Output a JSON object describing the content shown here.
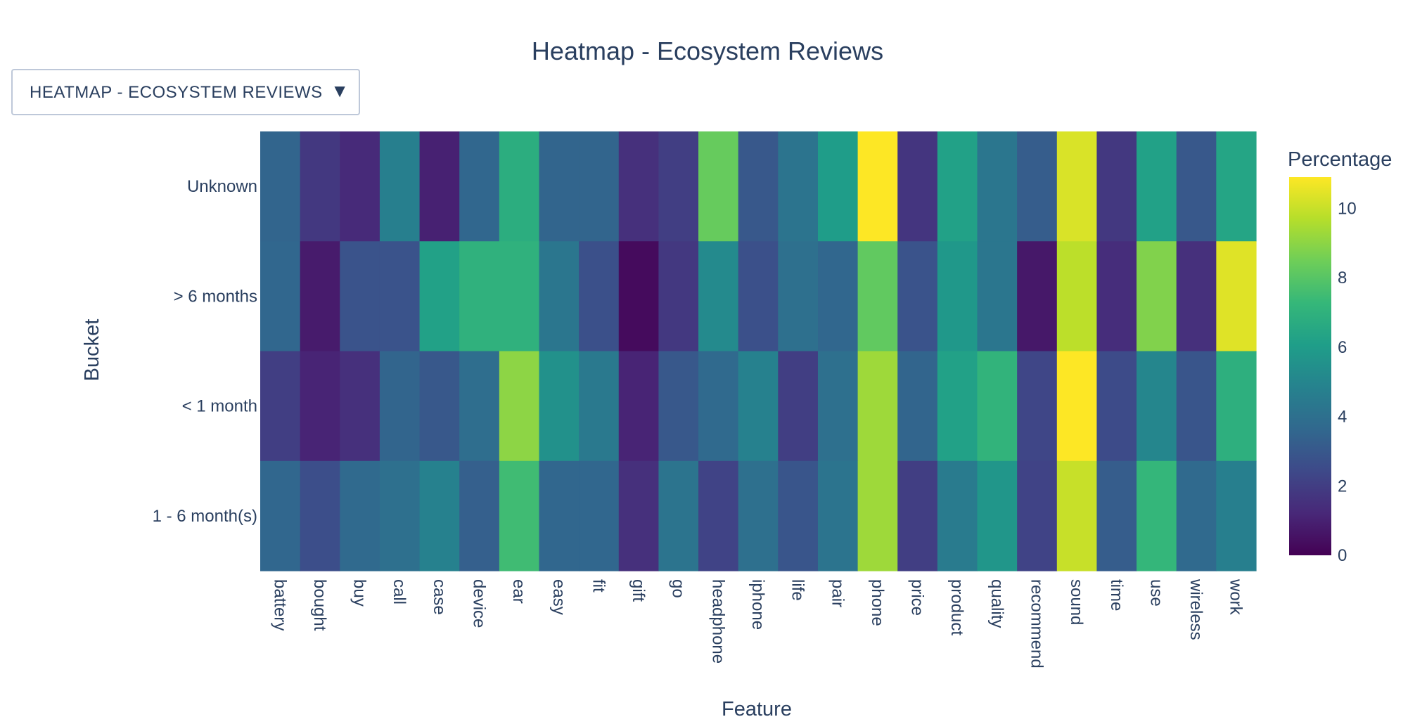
{
  "updatemenu": {
    "selected_label": "HEATMAP - ECOSYSTEM REVIEWS",
    "arrow_glyph": "▼"
  },
  "chart_data": {
    "type": "heatmap",
    "title": "Heatmap - Ecosystem Reviews",
    "xlabel": "Feature",
    "ylabel": "Bucket",
    "colorbar_title": "Percentage",
    "colorscale": "Viridis",
    "zmin": 0,
    "zmax": 10.9,
    "colorbar_ticks": [
      0,
      2,
      4,
      6,
      8,
      10
    ],
    "x": [
      "battery",
      "bought",
      "buy",
      "call",
      "case",
      "device",
      "ear",
      "easy",
      "fit",
      "gift",
      "go",
      "headphone",
      "iphone",
      "life",
      "pair",
      "phone",
      "price",
      "product",
      "quality",
      "recommend",
      "sound",
      "time",
      "use",
      "wireless",
      "work"
    ],
    "y": [
      "Unknown",
      "> 6 months",
      "< 1 month",
      "1 - 6 month(s)"
    ],
    "z": [
      [
        3.5,
        1.8,
        1.3,
        4.7,
        1.0,
        3.6,
        6.8,
        3.5,
        3.5,
        1.5,
        2.0,
        8.3,
        3.0,
        4.2,
        6.0,
        10.9,
        1.7,
        6.2,
        4.3,
        3.2,
        10.3,
        1.8,
        6.2,
        3.0,
        6.4
      ],
      [
        3.6,
        0.8,
        2.8,
        2.8,
        6.2,
        7.0,
        7.0,
        4.3,
        2.7,
        0.3,
        1.8,
        5.2,
        2.7,
        4.0,
        3.6,
        8.2,
        2.8,
        5.8,
        4.3,
        0.7,
        9.8,
        1.4,
        8.8,
        1.5,
        10.4
      ],
      [
        2.0,
        1.1,
        1.5,
        3.5,
        3.0,
        3.9,
        9.0,
        5.5,
        4.4,
        1.1,
        3.0,
        3.7,
        4.8,
        2.0,
        4.0,
        9.3,
        3.5,
        6.2,
        7.1,
        2.3,
        10.9,
        2.5,
        5.0,
        2.9,
        6.9
      ],
      [
        3.6,
        2.6,
        3.7,
        4.0,
        4.8,
        3.3,
        7.5,
        3.6,
        3.6,
        1.5,
        4.2,
        2.2,
        4.0,
        2.9,
        4.2,
        9.3,
        2.0,
        4.5,
        5.7,
        2.2,
        10.0,
        3.2,
        7.2,
        3.7,
        4.7
      ]
    ]
  }
}
